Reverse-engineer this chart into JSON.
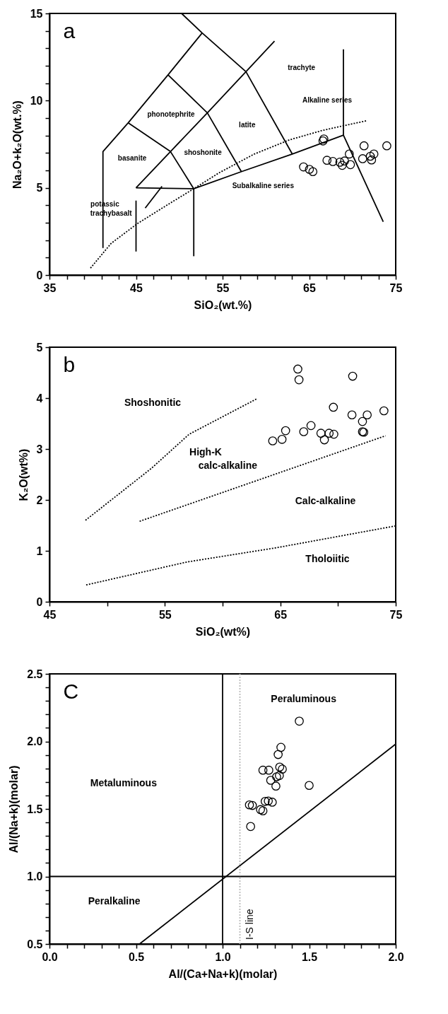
{
  "chart_data": [
    {
      "type": "scatter",
      "xlabel": "SiO₂(wt.%)",
      "ylabel": "Na₂O+k₂O(wt.%)",
      "grid": false,
      "marker": "circle",
      "xlim": [
        35,
        75
      ],
      "ylim": [
        0,
        15
      ],
      "xticks": [
        35,
        {
          "value": 37,
          "label": null
        },
        {
          "value": 39,
          "label": null
        },
        {
          "value": 41,
          "label": null
        },
        {
          "value": 43,
          "label": null
        },
        45,
        {
          "value": 47,
          "label": null
        },
        {
          "value": 49,
          "label": null
        },
        {
          "value": 51,
          "label": null
        },
        {
          "value": 53,
          "label": null
        },
        55,
        {
          "value": 57,
          "label": null
        },
        {
          "value": 59,
          "label": null
        },
        {
          "value": 61,
          "label": null
        },
        {
          "value": 63,
          "label": null
        },
        65,
        {
          "value": 67,
          "label": null
        },
        {
          "value": 69,
          "label": null
        },
        {
          "value": 71,
          "label": null
        },
        {
          "value": 73,
          "label": null
        },
        75
      ],
      "yticks": [
        0,
        {
          "value": 1,
          "label": null
        },
        {
          "value": 2,
          "label": null
        },
        {
          "value": 3,
          "label": null
        },
        {
          "value": 4,
          "label": null
        },
        5,
        {
          "value": 6,
          "label": null
        },
        {
          "value": 7,
          "label": null
        },
        {
          "value": 8,
          "label": null
        },
        {
          "value": 9,
          "label": null
        },
        10,
        {
          "value": 11,
          "label": null
        },
        {
          "value": 12,
          "label": null
        },
        {
          "value": 13,
          "label": null
        },
        {
          "value": 14,
          "label": null
        },
        15
      ],
      "series": [
        {
          "type": "line",
          "marker": "none",
          "color": "#000000",
          "line_style": "solid",
          "x": [
            41.18,
            41.18,
            44.1,
            48.7,
            52.64
          ],
          "values": [
            1.55,
            7.08,
            8.73,
            11.48,
            13.88
          ]
        },
        {
          "type": "line",
          "marker": "none",
          "color": "#000000",
          "line_style": "solid",
          "x": [
            50.26,
            52.64,
            57.7,
            63.05
          ],
          "values": [
            15.0,
            13.88,
            11.66,
            6.94
          ]
        },
        {
          "type": "line",
          "marker": "none",
          "color": "#000000",
          "line_style": "solid",
          "x": [
            44.1,
            48.98,
            51.67
          ],
          "values": [
            8.73,
            7.08,
            4.95
          ]
        },
        {
          "type": "line",
          "marker": "none",
          "color": "#000000",
          "line_style": "solid",
          "x": [
            48.7,
            53.24,
            57.17
          ],
          "values": [
            11.48,
            9.3,
            5.93
          ]
        },
        {
          "type": "line",
          "marker": "none",
          "color": "#000000",
          "line_style": "solid",
          "x": [
            45.0,
            48.98,
            53.24,
            57.7,
            61.0
          ],
          "values": [
            5.0,
            7.08,
            9.3,
            11.66,
            13.41
          ]
        },
        {
          "type": "line",
          "marker": "none",
          "color": "#000000",
          "line_style": "solid",
          "x": [
            45.0,
            51.67,
            57.17,
            63.05,
            68.96
          ],
          "values": [
            5.0,
            4.95,
            5.93,
            6.94,
            8.02
          ]
        },
        {
          "type": "line",
          "marker": "none",
          "color": "#000000",
          "line_style": "solid",
          "x": [
            45.0,
            45.0
          ],
          "values": [
            4.27,
            1.35
          ]
        },
        {
          "type": "line",
          "marker": "none",
          "color": "#000000",
          "line_style": "solid",
          "x": [
            51.67,
            51.67
          ],
          "values": [
            4.95,
            1.08
          ]
        },
        {
          "type": "line",
          "marker": "none",
          "color": "#000000",
          "line_style": "solid",
          "x": [
            68.96,
            68.96,
            73.56
          ],
          "values": [
            12.94,
            8.02,
            3.06
          ]
        },
        {
          "type": "line",
          "marker": "none",
          "color": "#000000",
          "line_style": "dotted",
          "x": [
            39.74,
            42.13,
            45.19,
            48.9,
            51.67,
            54.59,
            58.66,
            62.72,
            66.52,
            68.96,
            71.67
          ],
          "values": [
            0.4,
            1.82,
            2.96,
            4.11,
            4.95,
            5.86,
            6.94,
            7.75,
            8.29,
            8.56,
            8.85
          ]
        },
        {
          "type": "line",
          "marker": "none",
          "color": "#000000",
          "line_style": "solid",
          "x": [
            46.06,
            48.0
          ],
          "values": [
            3.84,
            5.09
          ]
        },
        {
          "type": "scatter",
          "color": "#000000",
          "x": [
            66.6,
            66.7,
            64.35,
            65.03,
            65.43,
            67.06,
            67.74,
            68.55,
            68.82,
            69.09,
            69.64,
            69.77,
            71.34,
            71.18,
            72.07,
            72.48,
            72.21,
            73.97
          ],
          "values": [
            7.69,
            7.8,
            6.2,
            6.06,
            5.93,
            6.58,
            6.51,
            6.47,
            6.29,
            6.54,
            6.94,
            6.33,
            7.41,
            6.67,
            6.81,
            6.94,
            6.6,
            7.41
          ]
        }
      ],
      "annotations": [
        "a",
        "trachyte",
        "Alkaline series",
        "phonotephrite",
        "latite",
        "basanite",
        "shoshonite",
        "Subalkaline series",
        "potassic",
        "trachybasalt"
      ]
    },
    {
      "type": "scatter",
      "xlabel": "SiO₂(wt%)",
      "ylabel": "K₂O(wt%)",
      "grid": false,
      "marker": "circle",
      "xlim": [
        45,
        75
      ],
      "ylim": [
        0,
        5
      ],
      "xticks": [
        45,
        {
          "value": 50,
          "label": null
        },
        55,
        {
          "value": 60,
          "label": null
        },
        65,
        {
          "value": 70,
          "label": null
        },
        75
      ],
      "yticks": [
        0,
        1,
        2,
        3,
        4,
        5
      ],
      "series": [
        {
          "type": "line",
          "marker": "none",
          "color": "#000000",
          "line_style": "dotted",
          "x": [
            48.12,
            53.83,
            57.1,
            63.0
          ],
          "values": [
            1.6,
            2.62,
            3.29,
            3.99
          ]
        },
        {
          "type": "line",
          "marker": "none",
          "color": "#000000",
          "line_style": "dotted",
          "x": [
            52.81,
            74.12
          ],
          "values": [
            1.58,
            3.26
          ]
        },
        {
          "type": "line",
          "marker": "none",
          "color": "#000000",
          "line_style": "dotted",
          "x": [
            48.18,
            56.89,
            64.64,
            75.0
          ],
          "values": [
            0.33,
            0.78,
            1.06,
            1.49
          ]
        },
        {
          "type": "scatter",
          "color": "#000000",
          "x": [
            66.52,
            66.62,
            71.27,
            69.6,
            73.98,
            71.21,
            72.53,
            72.12,
            72.12,
            72.23,
            67.66,
            67.03,
            65.46,
            64.34,
            65.15,
            68.52,
            68.82,
            69.23,
            69.64
          ],
          "values": [
            4.57,
            4.36,
            4.43,
            3.82,
            3.75,
            3.67,
            3.67,
            3.54,
            3.34,
            3.33,
            3.46,
            3.34,
            3.36,
            3.16,
            3.19,
            3.31,
            3.18,
            3.31,
            3.29
          ]
        }
      ],
      "annotations": [
        "b",
        "Shoshonitic",
        "High-K",
        "calc-alkaline",
        "Calc-alkaline",
        "Tholoiitic"
      ]
    },
    {
      "type": "scatter",
      "xlabel": "Al/(Ca+Na+k)(molar)",
      "ylabel": "Al/(Na+k)(molar)",
      "grid": false,
      "marker": "circle",
      "xlim": [
        0,
        2
      ],
      "ylim": [
        0.5,
        2.5
      ],
      "xticks": [
        {
          "value": 0,
          "label": "0.0"
        },
        {
          "value": 0.1,
          "label": null
        },
        {
          "value": 0.2,
          "label": null
        },
        {
          "value": 0.3,
          "label": null
        },
        {
          "value": 0.4,
          "label": null
        },
        0.5,
        {
          "value": 0.6,
          "label": null
        },
        {
          "value": 0.7,
          "label": null
        },
        {
          "value": 0.8,
          "label": null
        },
        {
          "value": 0.9,
          "label": null
        },
        {
          "value": 1,
          "label": "1.0"
        },
        {
          "value": 1.1,
          "label": null
        },
        {
          "value": 1.2,
          "label": null
        },
        {
          "value": 1.3,
          "label": null
        },
        {
          "value": 1.4,
          "label": null
        },
        1.5,
        {
          "value": 1.6,
          "label": null
        },
        {
          "value": 1.7,
          "label": null
        },
        {
          "value": 1.8,
          "label": null
        },
        {
          "value": 1.9,
          "label": null
        },
        {
          "value": 2,
          "label": "2.0"
        }
      ],
      "yticks": [
        0.5,
        {
          "value": 0.6,
          "label": null
        },
        {
          "value": 0.7,
          "label": null
        },
        {
          "value": 0.8,
          "label": null
        },
        {
          "value": 0.9,
          "label": null
        },
        {
          "value": 1,
          "label": "1.0"
        },
        {
          "value": 1.1,
          "label": null
        },
        {
          "value": 1.2,
          "label": null
        },
        {
          "value": 1.3,
          "label": null
        },
        {
          "value": 1.4,
          "label": null
        },
        1.5,
        {
          "value": 1.6,
          "label": null
        },
        {
          "value": 1.7,
          "label": null
        },
        {
          "value": 1.8,
          "label": null
        },
        {
          "value": 1.9,
          "label": null
        },
        {
          "value": 2,
          "label": "2.0"
        },
        {
          "value": 2.1,
          "label": null
        },
        {
          "value": 2.2,
          "label": null
        },
        {
          "value": 2.3,
          "label": null
        },
        {
          "value": 2.4,
          "label": null
        },
        2.5
      ],
      "ref_lines": [
        {
          "axis": "x",
          "value": 1.0,
          "color": "#000000",
          "line_style": "solid"
        },
        {
          "axis": "y",
          "value": 1.0,
          "color": "#000000",
          "line_style": "solid"
        },
        {
          "axis": "x",
          "value": 1.1,
          "label": "I-S line",
          "color": "#bbbbbb",
          "line_style": "dotted"
        }
      ],
      "series": [
        {
          "type": "line",
          "marker": "none",
          "color": "#000000",
          "line_style": "solid",
          "x": [
            0.52,
            2.0
          ],
          "values": [
            0.5,
            1.98
          ]
        },
        {
          "type": "scatter",
          "color": "#000000",
          "x": [
            1.443,
            1.337,
            1.321,
            1.233,
            1.267,
            1.33,
            1.345,
            1.328,
            1.312,
            1.278,
            1.308,
            1.5,
            1.155,
            1.172,
            1.246,
            1.264,
            1.287,
            1.219,
            1.233,
            1.162
          ],
          "values": [
            2.15,
            1.956,
            1.903,
            1.787,
            1.787,
            1.81,
            1.795,
            1.747,
            1.738,
            1.712,
            1.669,
            1.674,
            1.53,
            1.526,
            1.556,
            1.559,
            1.55,
            1.495,
            1.486,
            1.37
          ]
        }
      ],
      "annotations": [
        "C",
        "Peraluminous",
        "Metaluminous",
        "Peralkaline"
      ]
    }
  ]
}
